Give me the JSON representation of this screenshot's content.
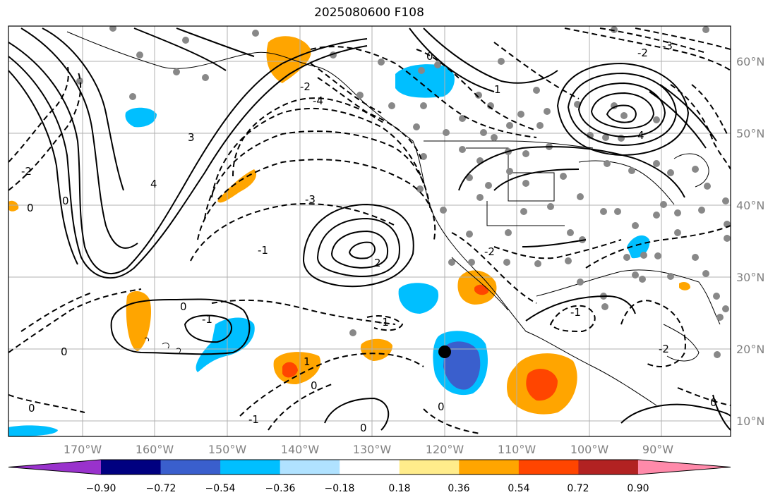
{
  "title": "2025080600 F108",
  "map": {
    "lon_ticks": [
      "170°W",
      "160°W",
      "150°W",
      "140°W",
      "130°W",
      "120°W",
      "110°W",
      "100°W",
      "90°W"
    ],
    "lat_ticks": [
      "60°N",
      "50°N",
      "40°N",
      "30°N",
      "20°N",
      "10°N"
    ],
    "contour_labels": [
      "0",
      "1",
      "2",
      "3",
      "4",
      "-1",
      "-2",
      "-3",
      "-4"
    ],
    "colorbar": {
      "ticks": [
        "−0.90",
        "−0.72",
        "−0.54",
        "−0.36",
        "−0.18",
        "0.18",
        "0.36",
        "0.54",
        "0.72",
        "0.90"
      ],
      "colors": [
        "#9932cc",
        "#000080",
        "#3a5fcd",
        "#00bfff",
        "#b0e2ff",
        "#ffffff",
        "#ffec8b",
        "#ffa500",
        "#ff4500",
        "#b22222",
        "#ff8aaa"
      ]
    },
    "marker_color": "#000000",
    "station_color": "#888888"
  }
}
